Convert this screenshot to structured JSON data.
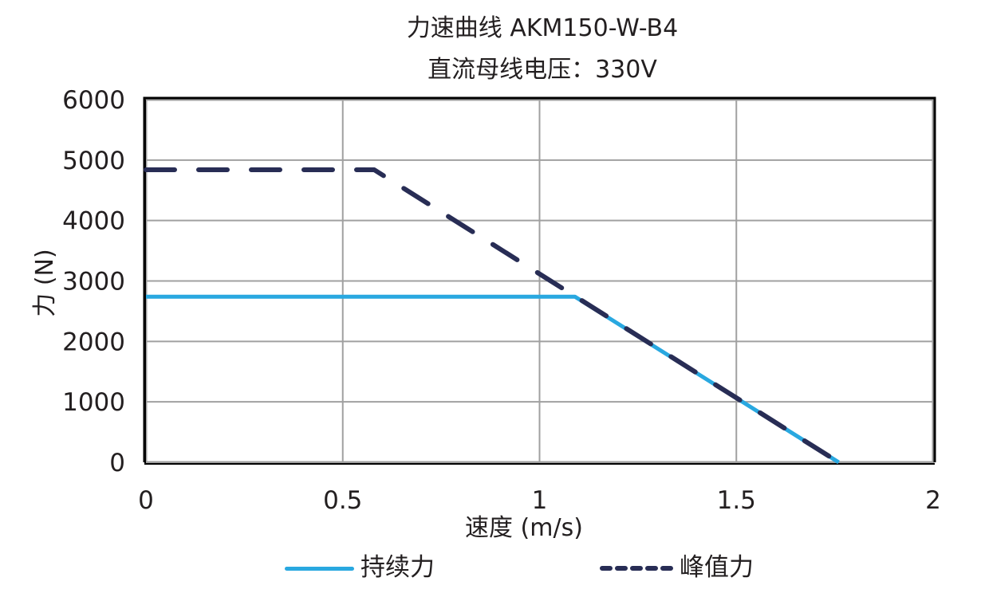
{
  "chart_data": {
    "type": "line",
    "title": "力速曲线 AKM150-W-B4",
    "subtitle": "直流母线电压：330V",
    "xlabel": "速度 (m/s)",
    "ylabel": "力 (N)",
    "xlim": [
      0,
      2
    ],
    "ylim": [
      0,
      6000
    ],
    "x_ticks": [
      "0",
      "0.5",
      "1",
      "1.5",
      "2"
    ],
    "y_ticks": [
      "0",
      "1000",
      "2000",
      "3000",
      "4000",
      "5000",
      "6000"
    ],
    "grid": true,
    "legend_position": "bottom",
    "series": [
      {
        "name": "持续力",
        "style": "solid",
        "color": "#29a8e0",
        "points": [
          [
            0,
            2740
          ],
          [
            1.09,
            2740
          ],
          [
            1.76,
            0
          ]
        ]
      },
      {
        "name": "峰值力",
        "style": "dashed",
        "color": "#282d55",
        "points": [
          [
            0,
            4840
          ],
          [
            0.58,
            4840
          ],
          [
            1.76,
            0
          ]
        ]
      }
    ]
  },
  "legend": {
    "continuous_label": "持续力",
    "peak_label": "峰值力"
  }
}
